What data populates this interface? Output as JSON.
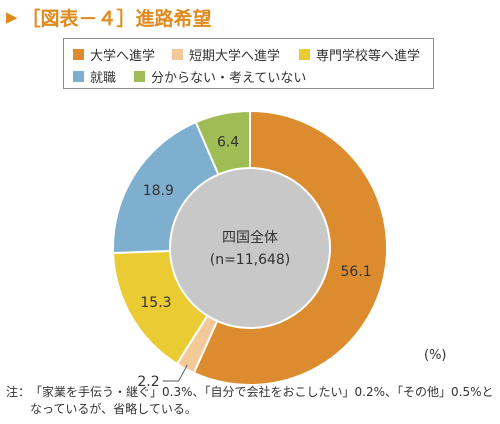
{
  "figure": {
    "title": "［図表－４］進路希望"
  },
  "chart_data": {
    "type": "pie",
    "center_label": {
      "line1": "四国全体",
      "line2": "(n=11,648)"
    },
    "unit": "(%)",
    "slices": [
      {
        "label": "大学へ進学",
        "value": 56.1,
        "value_label": "56.1",
        "color": "#DC8C2E"
      },
      {
        "label": "短期大学へ進学",
        "value": 2.2,
        "value_label": "2.2",
        "color": "#F3C99A"
      },
      {
        "label": "専門学校等へ進学",
        "value": 15.3,
        "value_label": "15.3",
        "color": "#EACB34"
      },
      {
        "label": "就職",
        "value": 18.9,
        "value_label": "18.9",
        "color": "#7FAFCF"
      },
      {
        "label": "分からない・考えていない",
        "value": 6.4,
        "value_label": "6.4",
        "color": "#9FBD54"
      }
    ],
    "legend_placement": "top"
  },
  "note": {
    "prefix": "注：",
    "text": "「家業を手伝う・継ぐ」0.3%、「自分で会社をおこしたい」0.2%、「その他」0.5%となっているが、省略している。"
  },
  "colors": {
    "title": "#E08A1E",
    "center_disc": "#C8C8C8",
    "legend_border": "#8C8C8C"
  }
}
